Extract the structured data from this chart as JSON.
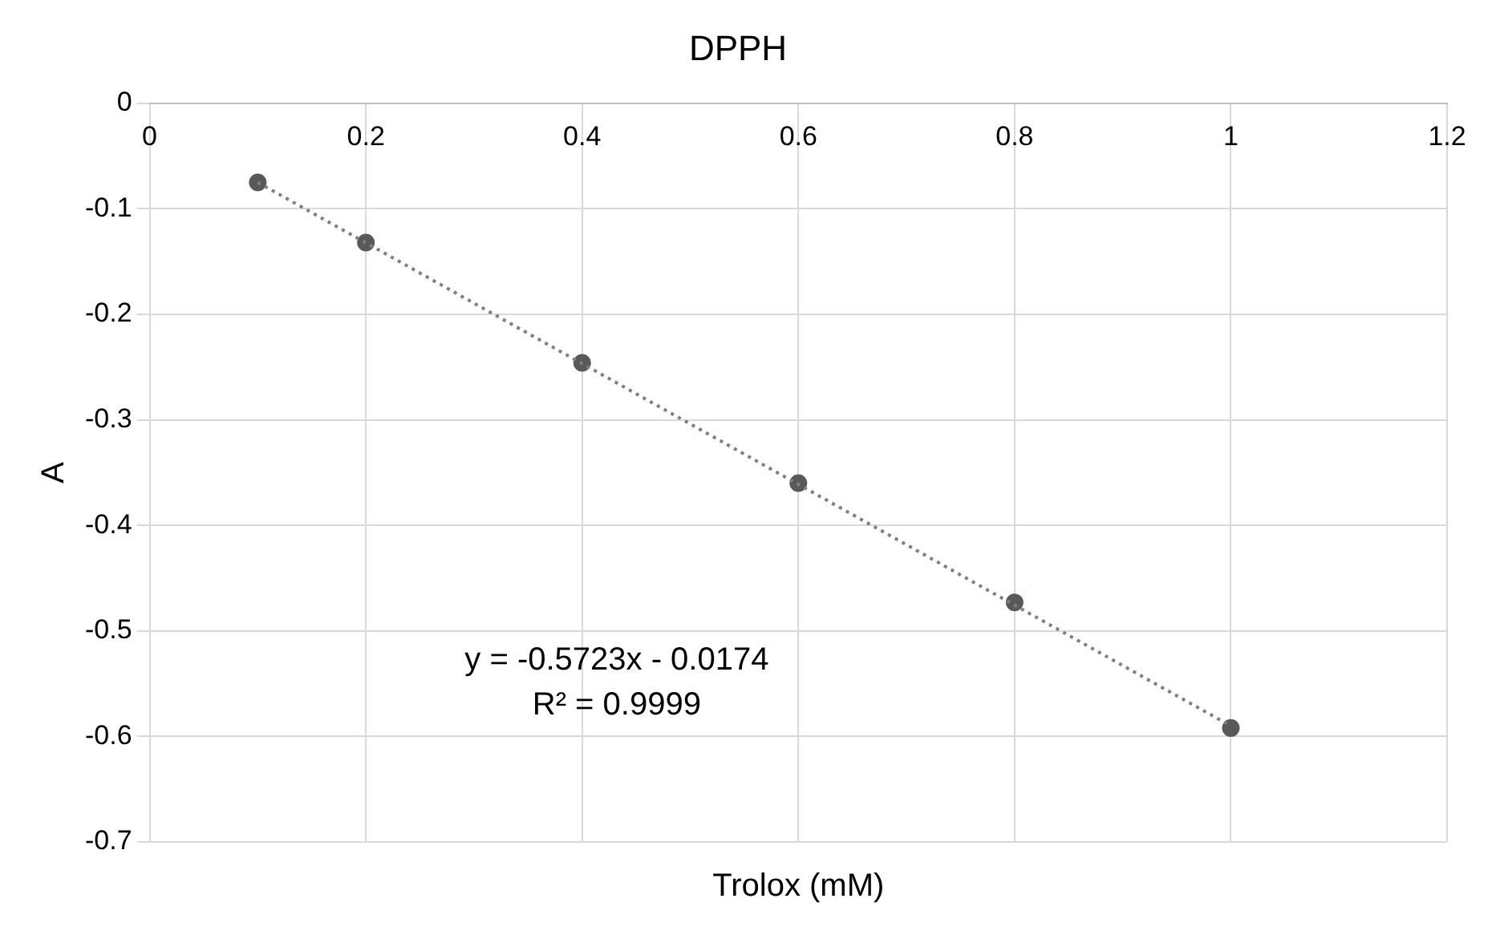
{
  "chart_data": {
    "type": "scatter",
    "title": "DPPH",
    "xlabel": "Trolox (mM)",
    "ylabel": "A",
    "xlim": [
      0,
      1.2
    ],
    "xticks": [
      0,
      0.2,
      0.4,
      0.6,
      0.8,
      1,
      1.2
    ],
    "ylim": [
      -0.7,
      0
    ],
    "yticks": [
      0,
      -0.1,
      -0.2,
      -0.3,
      -0.4,
      -0.5,
      -0.6,
      -0.7
    ],
    "grid": true,
    "legend": false,
    "series": [
      {
        "type": "line",
        "color": "#7f7f7f",
        "x": [
          0.1,
          1
        ],
        "values": [
          -0.075,
          -0.59
        ],
        "line_style": "dotted",
        "marker": "none"
      },
      {
        "type": "scatter",
        "color": "#595959",
        "x": [
          0.1,
          0.2,
          0.4,
          0.6,
          0.8,
          1
        ],
        "values": [
          -0.075,
          -0.132,
          -0.246,
          -0.36,
          -0.473,
          -0.592
        ],
        "marker": "circle"
      }
    ],
    "annotations": [
      "y = -0.5723x - 0.0174",
      "R² = 0.9999"
    ]
  }
}
